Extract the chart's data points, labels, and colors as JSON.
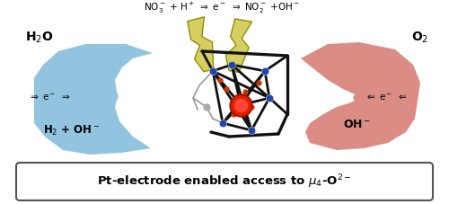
{
  "fig_width": 5.0,
  "fig_height": 2.27,
  "dpi": 100,
  "bg_color": "#ffffff",
  "left_arrow_color": "#7ab8d8",
  "right_arrow_color": "#d4736a",
  "lightning_color": "#d4cc55",
  "lightning_edge": "#8a8a00",
  "mol_line_color": "#111111",
  "center_atom_color": "#cc2200",
  "node_color_blue": "#2244aa",
  "node_color_red": "#cc3300",
  "node_color_gray": "#888888",
  "bond_lw": 2.0,
  "bottom_box_color": "#444444",
  "bottom_text": "Pt-electrode enabled access to $\\mu_4$-O$^{2-}$"
}
